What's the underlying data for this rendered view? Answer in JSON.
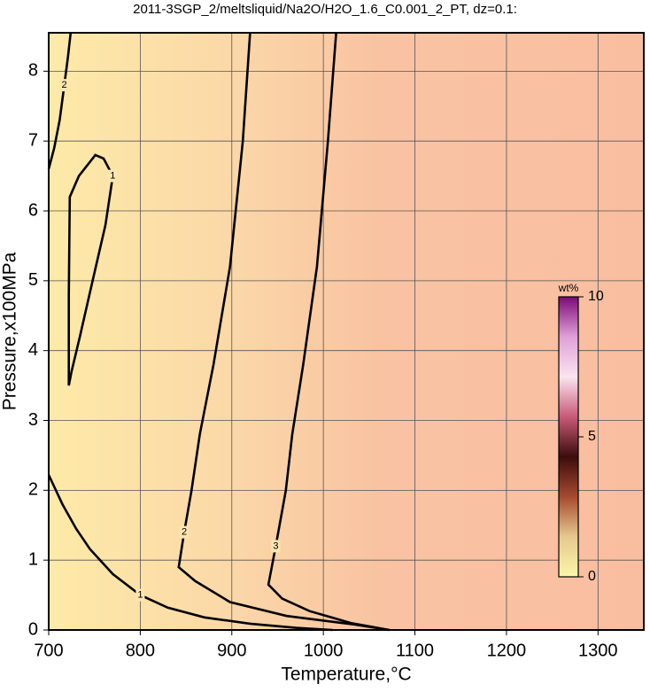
{
  "chart_data": {
    "type": "contour",
    "title": "2011-3SGP_2/meltsliquid/Na2O/H2O_1.6_C0.001_2_PT, dz=0.1:",
    "x_label": "Temperature,°C",
    "y_label": "Pressure,x100MPa",
    "xlim": [
      700,
      1350
    ],
    "ylim": [
      0,
      8.55
    ],
    "xticks": [
      700,
      800,
      900,
      1000,
      1100,
      1200,
      1300
    ],
    "yticks": [
      0,
      1,
      2,
      3,
      4,
      5,
      6,
      7,
      8
    ],
    "grid": true,
    "contours": [
      {
        "level": 1,
        "x": [
          722,
          722,
          723,
          733,
          751,
          760,
          770,
          762,
          748,
          734,
          725,
          722
        ],
        "y": [
          3.5,
          4.8,
          6.2,
          6.5,
          6.8,
          6.75,
          6.5,
          5.8,
          5.0,
          4.2,
          3.7,
          3.5
        ]
      },
      {
        "level": 1,
        "x": [
          700,
          715,
          730,
          745,
          770,
          800,
          830,
          870,
          920,
          970,
          1010
        ],
        "y": [
          2.22,
          1.8,
          1.45,
          1.16,
          0.8,
          0.5,
          0.32,
          0.18,
          0.09,
          0.03,
          0
        ]
      },
      {
        "level": 2,
        "x": [
          700,
          706,
          712,
          717,
          721,
          724
        ],
        "y": [
          6.6,
          6.9,
          7.3,
          7.8,
          8.2,
          8.55
        ]
      },
      {
        "level": 2,
        "x": [
          920,
          912,
          898,
          880,
          865,
          856,
          848,
          842,
          860,
          898,
          960,
          1033,
          1072
        ],
        "y": [
          8.55,
          7.0,
          5.2,
          3.8,
          2.8,
          2.0,
          1.4,
          0.9,
          0.7,
          0.4,
          0.2,
          0.08,
          0
        ]
      },
      {
        "level": 3,
        "x": [
          1014,
          1005,
          993,
          978,
          966,
          959,
          948,
          940,
          955,
          985,
          1030,
          1072
        ],
        "y": [
          8.55,
          7.0,
          5.2,
          3.8,
          2.8,
          2.0,
          1.2,
          0.65,
          0.45,
          0.27,
          0.1,
          0
        ]
      }
    ],
    "colorbar": {
      "label": "wt%",
      "lim": [
        0,
        10
      ],
      "ticks": [
        0,
        5,
        10
      ],
      "colormap": [
        "#fbf7a8",
        "#e6c890",
        "#a64a30",
        "#3c0c0c",
        "#c85a78",
        "#fbe4f0",
        "#e0a0d8",
        "#7a0a78"
      ]
    }
  }
}
